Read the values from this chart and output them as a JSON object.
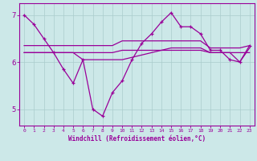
{
  "x": [
    0,
    1,
    2,
    3,
    4,
    5,
    6,
    7,
    8,
    9,
    10,
    11,
    12,
    13,
    14,
    15,
    16,
    17,
    18,
    19,
    20,
    21,
    22,
    23
  ],
  "line1": [
    7.0,
    6.8,
    6.5,
    6.2,
    5.85,
    5.55,
    6.05,
    5.0,
    4.85,
    5.35,
    5.6,
    6.05,
    6.4,
    6.6,
    6.85,
    7.05,
    6.75,
    6.75,
    6.6,
    6.25,
    6.25,
    6.05,
    6.0,
    6.35
  ],
  "line2": [
    6.35,
    6.35,
    6.35,
    6.35,
    6.35,
    6.35,
    6.35,
    6.35,
    6.35,
    6.35,
    6.45,
    6.45,
    6.45,
    6.45,
    6.45,
    6.45,
    6.45,
    6.45,
    6.45,
    6.3,
    6.3,
    6.3,
    6.3,
    6.35
  ],
  "line3": [
    6.2,
    6.2,
    6.2,
    6.2,
    6.2,
    6.2,
    6.2,
    6.2,
    6.2,
    6.2,
    6.25,
    6.25,
    6.25,
    6.25,
    6.25,
    6.25,
    6.25,
    6.25,
    6.25,
    6.2,
    6.2,
    6.2,
    6.2,
    6.2
  ],
  "line4": [
    6.2,
    6.2,
    6.2,
    6.2,
    6.2,
    6.2,
    6.05,
    6.05,
    6.05,
    6.05,
    6.05,
    6.1,
    6.15,
    6.2,
    6.25,
    6.3,
    6.3,
    6.3,
    6.3,
    6.2,
    6.2,
    6.2,
    6.0,
    6.3
  ],
  "line_color": "#990099",
  "background_color": "#cce8e8",
  "grid_color": "#aacccc",
  "xlabel": "Windchill (Refroidissement éolien,°C)",
  "ylim": [
    4.65,
    7.25
  ],
  "xlim": [
    -0.5,
    23.5
  ],
  "yticks": [
    5,
    6,
    7
  ],
  "xticks": [
    0,
    1,
    2,
    3,
    4,
    5,
    6,
    7,
    8,
    9,
    10,
    11,
    12,
    13,
    14,
    15,
    16,
    17,
    18,
    19,
    20,
    21,
    22,
    23
  ]
}
